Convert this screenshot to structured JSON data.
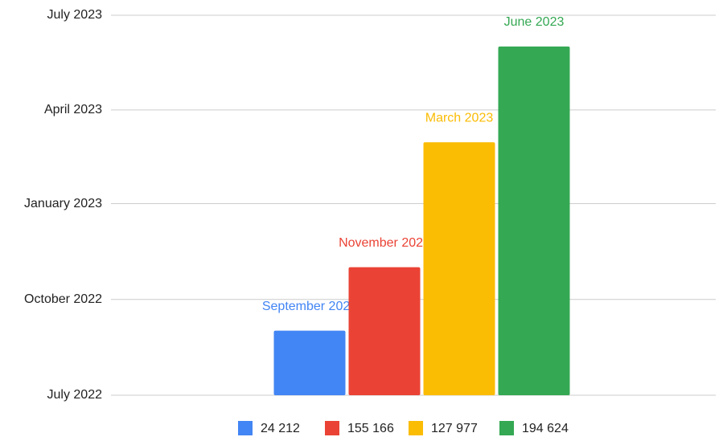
{
  "chart_data": {
    "type": "bar",
    "categories": [
      null
    ],
    "series": [
      {
        "name": "24 212",
        "color": "#4285f4",
        "values": [
          "2022-09-01"
        ],
        "value_labels": [
          "September 2022"
        ]
      },
      {
        "name": "155 166",
        "color": "#ea4335",
        "values": [
          "2022-11-01"
        ],
        "value_labels": [
          "November 2022"
        ]
      },
      {
        "name": "127 977",
        "color": "#fbbc04",
        "values": [
          "2023-03-01"
        ],
        "value_labels": [
          "March 2023"
        ]
      },
      {
        "name": "194 624",
        "color": "#34a853",
        "values": [
          "2023-06-01"
        ],
        "value_labels": [
          "June 2023"
        ]
      }
    ],
    "ylim": [
      "2022-07-01",
      "2023-07-01"
    ],
    "yticks": [
      {
        "value": "2022-07-01",
        "label": "July 2022"
      },
      {
        "value": "2022-10-01",
        "label": "October 2022"
      },
      {
        "value": "2023-01-01",
        "label": "January 2023"
      },
      {
        "value": "2023-04-01",
        "label": "April 2023"
      },
      {
        "value": "2023-07-01",
        "label": "July 2023"
      }
    ],
    "grid": true,
    "legend": "bottom"
  }
}
